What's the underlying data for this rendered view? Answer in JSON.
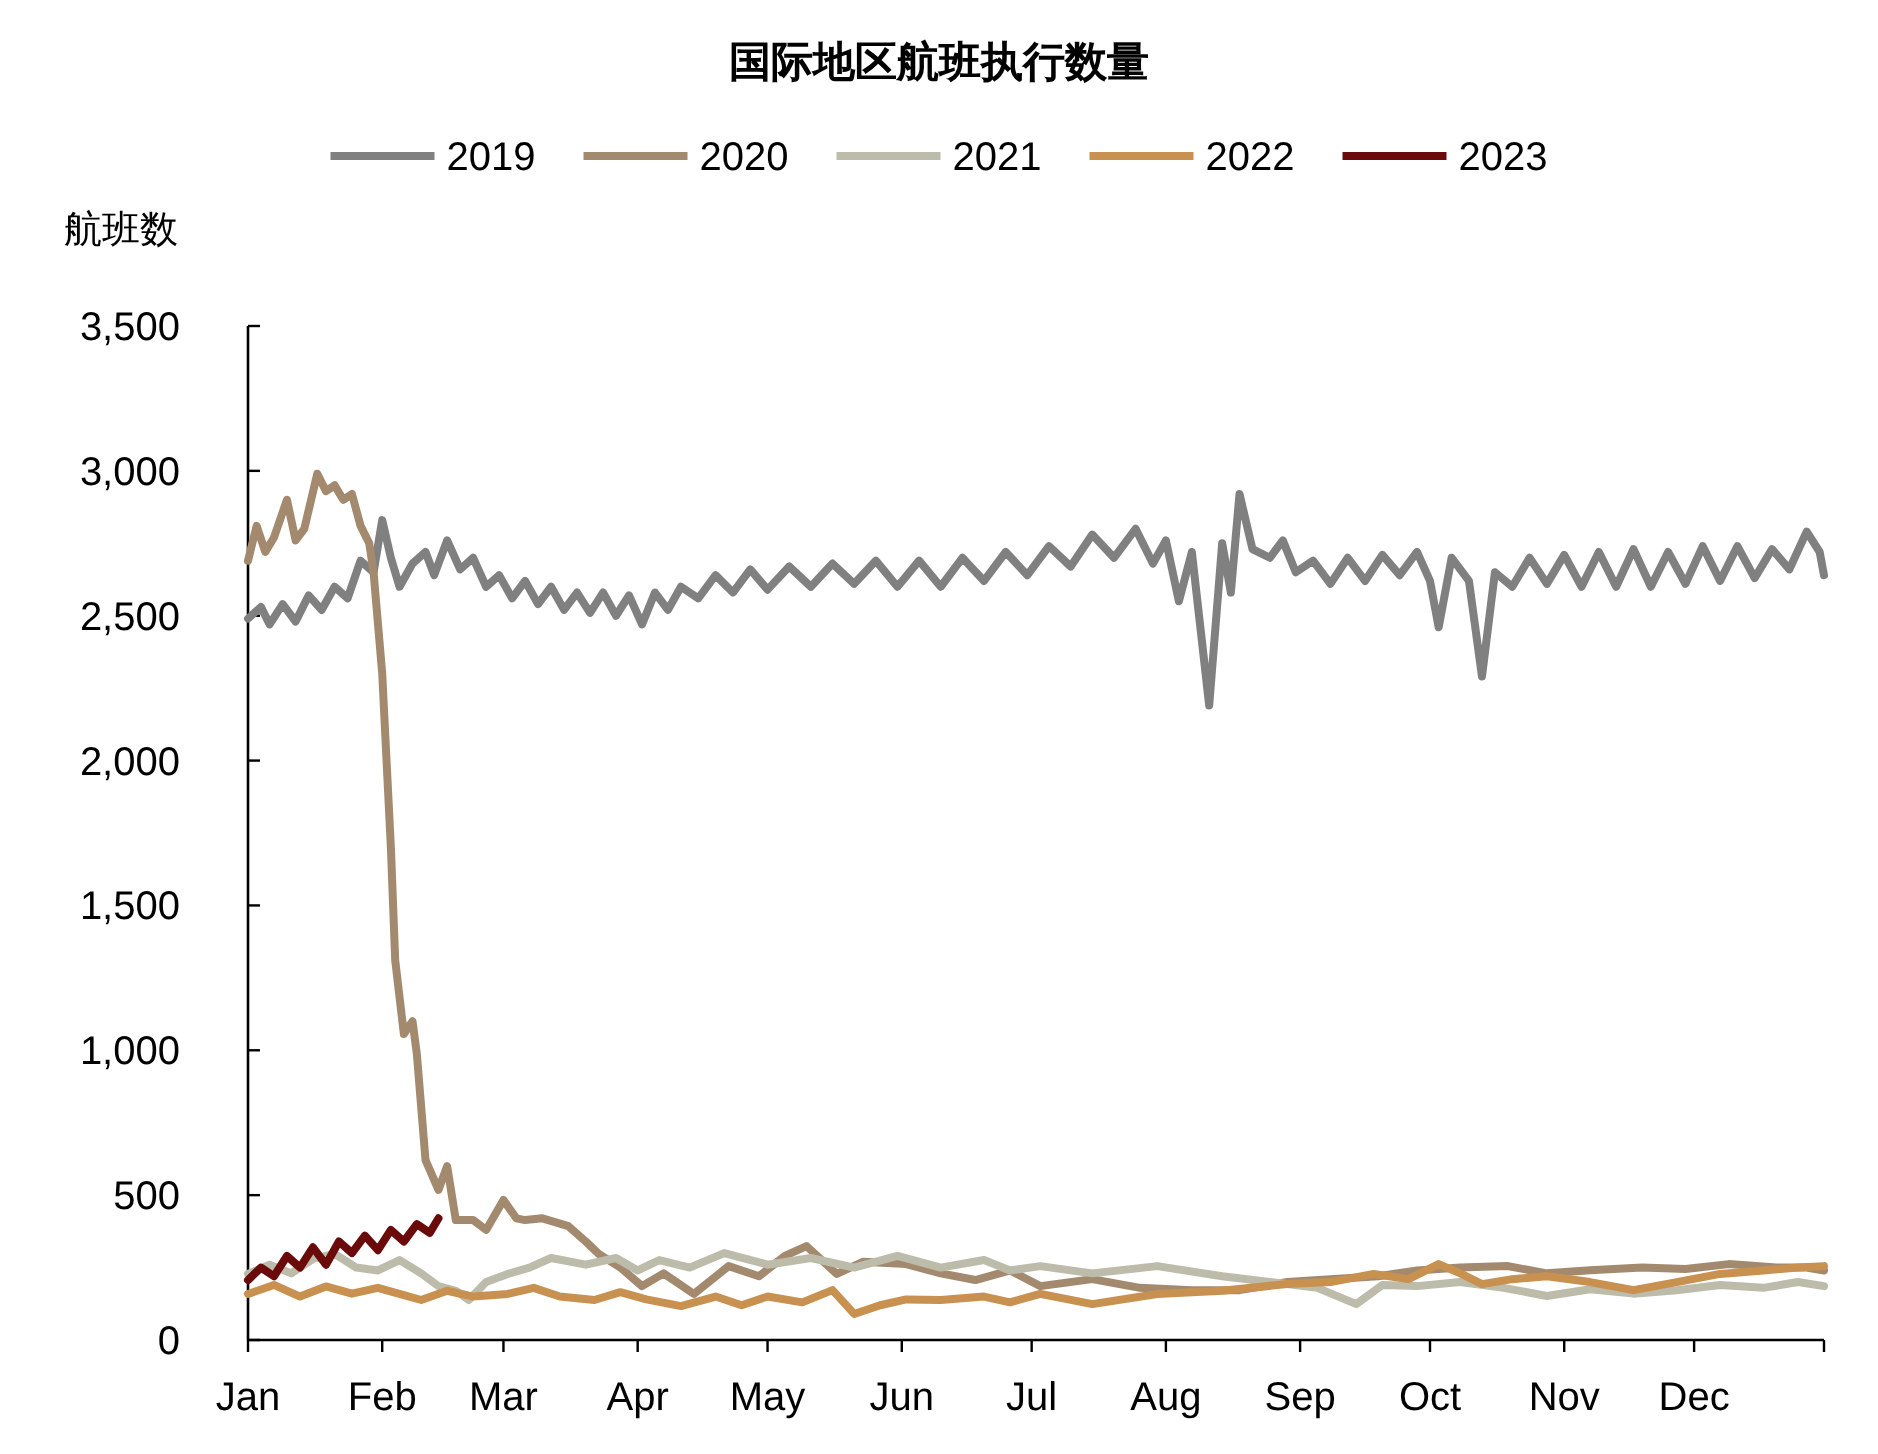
{
  "chart_data": {
    "type": "line",
    "title": "国际地区航班执行数量",
    "ylabel": "航班数",
    "legend": "top",
    "xlim": [
      "--01-01",
      "--12-31"
    ],
    "xticks": [
      {
        "value": "--01-01",
        "label": "Jan"
      },
      {
        "value": "--02-01",
        "label": "Feb"
      },
      {
        "value": "--03-01",
        "label": "Mar"
      },
      {
        "value": "--04-01",
        "label": "Apr"
      },
      {
        "value": "--05-01",
        "label": "May"
      },
      {
        "value": "--06-01",
        "label": "Jun"
      },
      {
        "value": "--07-01",
        "label": "Jul"
      },
      {
        "value": "--08-01",
        "label": "Aug"
      },
      {
        "value": "--09-01",
        "label": "Sep"
      },
      {
        "value": "--10-01",
        "label": "Oct"
      },
      {
        "value": "--11-01",
        "label": "Nov"
      },
      {
        "value": "--12-01",
        "label": "Dec"
      }
    ],
    "ylim": [
      0,
      3500
    ],
    "yticks": [
      0,
      500,
      {
        "value": 1000,
        "label": "1,000"
      },
      {
        "value": 1500,
        "label": "1,500"
      },
      {
        "value": 2000,
        "label": "2,000"
      },
      {
        "value": 2500,
        "label": "2,500"
      },
      {
        "value": 3000,
        "label": "3,000"
      },
      {
        "value": 3500,
        "label": "3,500"
      }
    ],
    "series": [
      {
        "name": "2019",
        "color": "#808080",
        "x": [
          "--01-01",
          "--01-04",
          "--01-06",
          "--01-09",
          "--01-12",
          "--01-15",
          "--01-18",
          "--01-21",
          "--01-24",
          "--01-27",
          "--01-30",
          "--02-01",
          "--02-03",
          "--02-05",
          "--02-08",
          "--02-11",
          "--02-13",
          "--02-16",
          "--02-19",
          "--02-22",
          "--02-25",
          "--02-28",
          "--03-03",
          "--03-06",
          "--03-09",
          "--03-12",
          "--03-15",
          "--03-18",
          "--03-21",
          "--03-24",
          "--03-27",
          "--03-30",
          "--04-02",
          "--04-05",
          "--04-08",
          "--04-11",
          "--04-15",
          "--04-19",
          "--04-23",
          "--04-27",
          "--05-01",
          "--05-06",
          "--05-11",
          "--05-16",
          "--05-21",
          "--05-26",
          "--05-31",
          "--06-05",
          "--06-10",
          "--06-15",
          "--06-20",
          "--06-25",
          "--06-30",
          "--07-05",
          "--07-10",
          "--07-15",
          "--07-20",
          "--07-25",
          "--07-29",
          "--08-01",
          "--08-04",
          "--08-07",
          "--08-11",
          "--08-14",
          "--08-16",
          "--08-18",
          "--08-21",
          "--08-25",
          "--08-28",
          "--08-31",
          "--09-04",
          "--09-08",
          "--09-12",
          "--09-16",
          "--09-20",
          "--09-24",
          "--09-28",
          "--10-01",
          "--10-03",
          "--10-06",
          "--10-10",
          "--10-13",
          "--10-16",
          "--10-20",
          "--10-24",
          "--10-28",
          "--11-01",
          "--11-05",
          "--11-09",
          "--11-13",
          "--11-17",
          "--11-21",
          "--11-25",
          "--11-29",
          "--12-03",
          "--12-07",
          "--12-11",
          "--12-15",
          "--12-19",
          "--12-23",
          "--12-27",
          "--12-30",
          "--12-31"
        ],
        "values": [
          2490,
          2530,
          2470,
          2540,
          2480,
          2570,
          2520,
          2600,
          2560,
          2690,
          2650,
          2830,
          2700,
          2600,
          2680,
          2720,
          2640,
          2760,
          2660,
          2700,
          2600,
          2640,
          2560,
          2620,
          2540,
          2600,
          2520,
          2580,
          2510,
          2580,
          2500,
          2570,
          2470,
          2580,
          2520,
          2600,
          2560,
          2640,
          2580,
          2660,
          2590,
          2670,
          2600,
          2680,
          2610,
          2690,
          2600,
          2690,
          2600,
          2700,
          2620,
          2720,
          2640,
          2740,
          2670,
          2780,
          2700,
          2800,
          2680,
          2760,
          2550,
          2720,
          2190,
          2750,
          2580,
          2920,
          2730,
          2700,
          2760,
          2650,
          2690,
          2610,
          2700,
          2620,
          2710,
          2640,
          2720,
          2620,
          2460,
          2700,
          2620,
          2290,
          2650,
          2600,
          2700,
          2610,
          2710,
          2600,
          2720,
          2600,
          2730,
          2600,
          2720,
          2610,
          2740,
          2620,
          2740,
          2630,
          2730,
          2660,
          2790,
          2720,
          2640
        ]
      },
      {
        "name": "2020",
        "color": "#a38a6e",
        "x": [
          "--01-01",
          "--01-03",
          "--01-05",
          "--01-07",
          "--01-10",
          "--01-12",
          "--01-14",
          "--01-17",
          "--01-19",
          "--01-21",
          "--01-23",
          "--01-25",
          "--01-27",
          "--01-29",
          "--01-30",
          "--02-01",
          "--02-02",
          "--02-03",
          "--02-04",
          "--02-06",
          "--02-08",
          "--02-09",
          "--02-11",
          "--02-14",
          "--02-16",
          "--02-18",
          "--02-22",
          "--02-25",
          "--03-01",
          "--03-04",
          "--03-06",
          "--03-10",
          "--03-16",
          "--03-20",
          "--03-23",
          "--03-28",
          "--04-02",
          "--04-07",
          "--04-14",
          "--04-22",
          "--04-29",
          "--05-05",
          "--05-10",
          "--05-17",
          "--05-23",
          "--06-02",
          "--06-10",
          "--06-18",
          "--06-26",
          "--07-03",
          "--07-15",
          "--07-26",
          "--08-07",
          "--08-18",
          "--08-29",
          "--09-08",
          "--09-19",
          "--09-28",
          "--10-08",
          "--10-19",
          "--10-28",
          "--11-07",
          "--11-19",
          "--11-29",
          "--12-09",
          "--12-20",
          "--12-27",
          "--12-31"
        ],
        "values": [
          2690,
          2810,
          2720,
          2770,
          2900,
          2760,
          2800,
          2990,
          2930,
          2950,
          2900,
          2920,
          2810,
          2750,
          2650,
          2300,
          2000,
          1700,
          1311,
          1056,
          1100,
          987,
          621,
          518,
          600,
          414,
          414,
          380,
          483,
          420,
          414,
          420,
          393,
          340,
          297,
          250,
          186,
          230,
          159,
          255,
          220,
          290,
          324,
          228,
          270,
          262,
          230,
          207,
          240,
          186,
          210,
          180,
          172,
          172,
          200,
          210,
          220,
          240,
          250,
          255,
          230,
          241,
          250,
          245,
          262,
          250,
          250,
          240
        ]
      },
      {
        "name": "2021",
        "color": "#bdbcab",
        "x": [
          "--01-01",
          "--01-06",
          "--01-11",
          "--01-16",
          "--01-21",
          "--01-26",
          "--01-31",
          "--02-05",
          "--02-10",
          "--02-14",
          "--02-18",
          "--02-21",
          "--02-25",
          "--03-02",
          "--03-07",
          "--03-12",
          "--03-20",
          "--03-27",
          "--04-01",
          "--04-06",
          "--04-13",
          "--04-21",
          "--05-01",
          "--05-11",
          "--05-21",
          "--05-31",
          "--06-10",
          "--06-20",
          "--06-26",
          "--07-03",
          "--07-15",
          "--07-30",
          "--08-14",
          "--08-29",
          "--09-05",
          "--09-14",
          "--09-20",
          "--09-28",
          "--10-08",
          "--10-18",
          "--10-28",
          "--11-07",
          "--11-17",
          "--11-27",
          "--12-07",
          "--12-17",
          "--12-25",
          "--12-31"
        ],
        "values": [
          228,
          260,
          230,
          280,
          297,
          250,
          240,
          276,
          230,
          186,
          170,
          138,
          200,
          228,
          250,
          283,
          260,
          283,
          240,
          276,
          250,
          300,
          260,
          283,
          250,
          290,
          250,
          276,
          240,
          255,
          230,
          255,
          220,
          193,
          180,
          124,
          190,
          186,
          200,
          180,
          152,
          175,
          160,
          172,
          190,
          180,
          200,
          186
        ]
      },
      {
        "name": "2022",
        "color": "#c8914f",
        "x": [
          "--01-01",
          "--01-07",
          "--01-13",
          "--01-19",
          "--01-25",
          "--01-31",
          "--02-06",
          "--02-10",
          "--02-16",
          "--02-22",
          "--03-02",
          "--03-08",
          "--03-14",
          "--03-22",
          "--03-28",
          "--04-03",
          "--04-11",
          "--04-19",
          "--04-25",
          "--05-01",
          "--05-09",
          "--05-16",
          "--05-21",
          "--05-27",
          "--06-02",
          "--06-10",
          "--06-20",
          "--06-26",
          "--07-03",
          "--07-15",
          "--07-30",
          "--08-14",
          "--08-29",
          "--09-08",
          "--09-18",
          "--09-26",
          "--10-03",
          "--10-08",
          "--10-13",
          "--10-20",
          "--10-28",
          "--11-07",
          "--11-17",
          "--11-27",
          "--12-07",
          "--12-17",
          "--12-25",
          "--12-31"
        ],
        "values": [
          159,
          190,
          150,
          185,
          160,
          180,
          155,
          138,
          170,
          150,
          159,
          180,
          150,
          138,
          165,
          140,
          117,
          150,
          120,
          150,
          130,
          172,
          90,
          120,
          140,
          138,
          150,
          130,
          159,
          124,
          159,
          170,
          193,
          200,
          228,
          210,
          262,
          230,
          193,
          210,
          220,
          200,
          172,
          200,
          228,
          240,
          250,
          255
        ]
      },
      {
        "name": "2023",
        "color": "#6b0a0a",
        "x": [
          "--01-01",
          "--01-04",
          "--01-07",
          "--01-10",
          "--01-13",
          "--01-16",
          "--01-19",
          "--01-22",
          "--01-25",
          "--01-28",
          "--01-31",
          "--02-03",
          "--02-06",
          "--02-09",
          "--02-12",
          "--02-14"
        ],
        "values": [
          207,
          250,
          220,
          290,
          250,
          320,
          260,
          340,
          300,
          360,
          310,
          380,
          340,
          400,
          370,
          420
        ]
      }
    ]
  }
}
